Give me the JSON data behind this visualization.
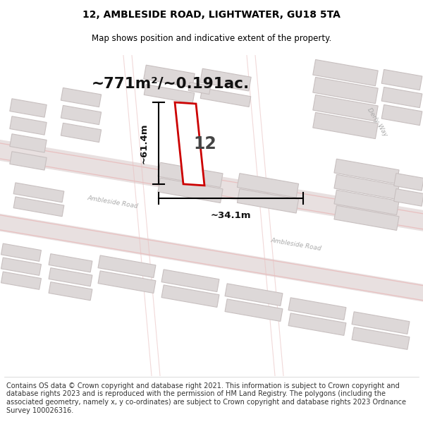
{
  "title": "12, AMBLESIDE ROAD, LIGHTWATER, GU18 5TA",
  "subtitle": "Map shows position and indicative extent of the property.",
  "area_text": "~771m²/~0.191ac.",
  "number_label": "12",
  "dim_height": "~61.4m",
  "dim_width": "~34.1m",
  "footer": "Contains OS data © Crown copyright and database right 2021. This information is subject to Crown copyright and database rights 2023 and is reproduced with the permission of HM Land Registry. The polygons (including the associated geometry, namely x, y co-ordinates) are subject to Crown copyright and database rights 2023 Ordnance Survey 100026316.",
  "map_bg": "#f2efef",
  "road_fill": "#e8e0e0",
  "road_edge": "#dcc8c8",
  "road_line": "#e8c0c0",
  "building_fill": "#ddd8d8",
  "building_edge": "#c8c0c0",
  "property_color": "#cc0000",
  "property_fill": "#ffffff",
  "title_color": "#000000",
  "dim_color": "#111111",
  "label_color": "#aaaaaa"
}
